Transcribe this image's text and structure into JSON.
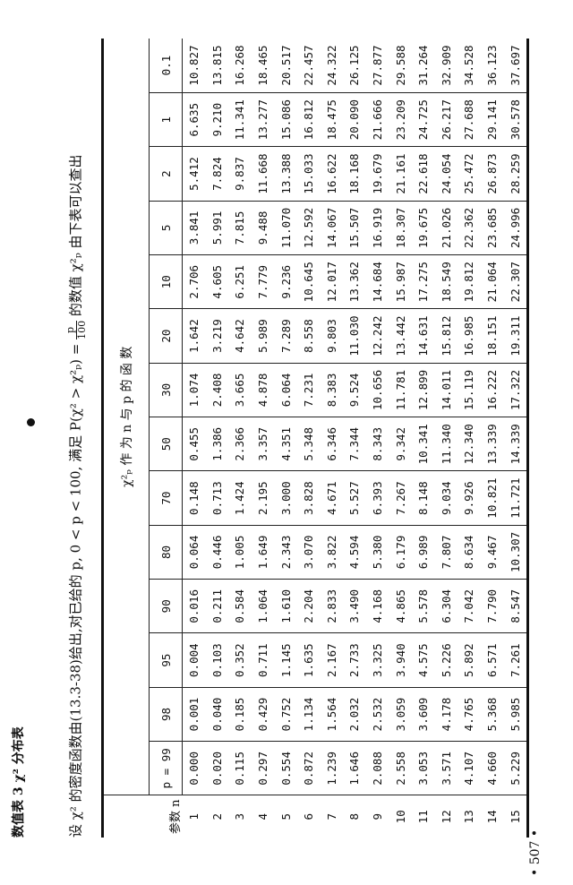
{
  "title": "数值表 3  χ² 分布表",
  "description": {
    "text_before": "设 χ² 的密度函数由(13.3-38)给出,对已给的 p, 0 < p < 100, 满足 P(χ² > χ²ₚ) = ",
    "fraction_num": "p",
    "fraction_den": "100",
    "text_after": " 的数值 χ²ₚ 由下表可以查出"
  },
  "table": {
    "caption": "χ²ₚ 作 为 n 与 p 的 函 数",
    "row_header_label": "参数 n",
    "p_columns": [
      "p = 99",
      "98",
      "95",
      "90",
      "80",
      "70",
      "50",
      "30",
      "20",
      "10",
      "5",
      "2",
      "1",
      "0.1"
    ],
    "rows": [
      {
        "n": "1",
        "values": [
          "0.000",
          "0.001",
          "0.004",
          "0.016",
          "0.064",
          "0.148",
          "0.455",
          "1.074",
          "1.642",
          "2.706",
          "3.841",
          "5.412",
          "6.635",
          "10.827"
        ]
      },
      {
        "n": "2",
        "values": [
          "0.020",
          "0.040",
          "0.103",
          "0.211",
          "0.446",
          "0.713",
          "1.386",
          "2.408",
          "3.219",
          "4.605",
          "5.991",
          "7.824",
          "9.210",
          "13.815"
        ]
      },
      {
        "n": "3",
        "values": [
          "0.115",
          "0.185",
          "0.352",
          "0.584",
          "1.005",
          "1.424",
          "2.366",
          "3.665",
          "4.642",
          "6.251",
          "7.815",
          "9.837",
          "11.341",
          "16.268"
        ]
      },
      {
        "n": "4",
        "values": [
          "0.297",
          "0.429",
          "0.711",
          "1.064",
          "1.649",
          "2.195",
          "3.357",
          "4.878",
          "5.989",
          "7.779",
          "9.488",
          "11.668",
          "13.277",
          "18.465"
        ]
      },
      {
        "n": "5",
        "values": [
          "0.554",
          "0.752",
          "1.145",
          "1.610",
          "2.343",
          "3.000",
          "4.351",
          "6.064",
          "7.289",
          "9.236",
          "11.070",
          "13.388",
          "15.086",
          "20.517"
        ]
      },
      {
        "n": "6",
        "values": [
          "0.872",
          "1.134",
          "1.635",
          "2.204",
          "3.070",
          "3.828",
          "5.348",
          "7.231",
          "8.558",
          "10.645",
          "12.592",
          "15.033",
          "16.812",
          "22.457"
        ]
      },
      {
        "n": "7",
        "values": [
          "1.239",
          "1.564",
          "2.167",
          "2.833",
          "3.822",
          "4.671",
          "6.346",
          "8.383",
          "9.803",
          "12.017",
          "14.067",
          "16.622",
          "18.475",
          "24.322"
        ]
      },
      {
        "n": "8",
        "values": [
          "1.646",
          "2.032",
          "2.733",
          "3.490",
          "4.594",
          "5.527",
          "7.344",
          "9.524",
          "11.030",
          "13.362",
          "15.507",
          "18.168",
          "20.090",
          "26.125"
        ]
      },
      {
        "n": "9",
        "values": [
          "2.088",
          "2.532",
          "3.325",
          "4.168",
          "5.380",
          "6.393",
          "8.343",
          "10.656",
          "12.242",
          "14.684",
          "16.919",
          "19.679",
          "21.666",
          "27.877"
        ]
      },
      {
        "n": "10",
        "values": [
          "2.558",
          "3.059",
          "3.940",
          "4.865",
          "6.179",
          "7.267",
          "9.342",
          "11.781",
          "13.442",
          "15.987",
          "18.307",
          "21.161",
          "23.209",
          "29.588"
        ]
      },
      {
        "n": "11",
        "values": [
          "3.053",
          "3.609",
          "4.575",
          "5.578",
          "6.989",
          "8.148",
          "10.341",
          "12.899",
          "14.631",
          "17.275",
          "19.675",
          "22.618",
          "24.725",
          "31.264"
        ]
      },
      {
        "n": "12",
        "values": [
          "3.571",
          "4.178",
          "5.226",
          "6.304",
          "7.807",
          "9.034",
          "11.340",
          "14.011",
          "15.812",
          "18.549",
          "21.026",
          "24.054",
          "26.217",
          "32.909"
        ]
      },
      {
        "n": "13",
        "values": [
          "4.107",
          "4.765",
          "5.892",
          "7.042",
          "8.634",
          "9.926",
          "12.340",
          "15.119",
          "16.985",
          "19.812",
          "22.362",
          "25.472",
          "27.688",
          "34.528"
        ]
      },
      {
        "n": "14",
        "values": [
          "4.660",
          "5.368",
          "6.571",
          "7.790",
          "9.467",
          "10.821",
          "13.339",
          "16.222",
          "18.151",
          "21.064",
          "23.685",
          "26.873",
          "29.141",
          "36.123"
        ]
      },
      {
        "n": "15",
        "values": [
          "5.229",
          "5.985",
          "7.261",
          "8.547",
          "10.307",
          "11.721",
          "14.339",
          "17.322",
          "19.311",
          "22.307",
          "24.996",
          "28.259",
          "30.578",
          "37.697"
        ]
      }
    ]
  },
  "page_number": "• 507 •"
}
